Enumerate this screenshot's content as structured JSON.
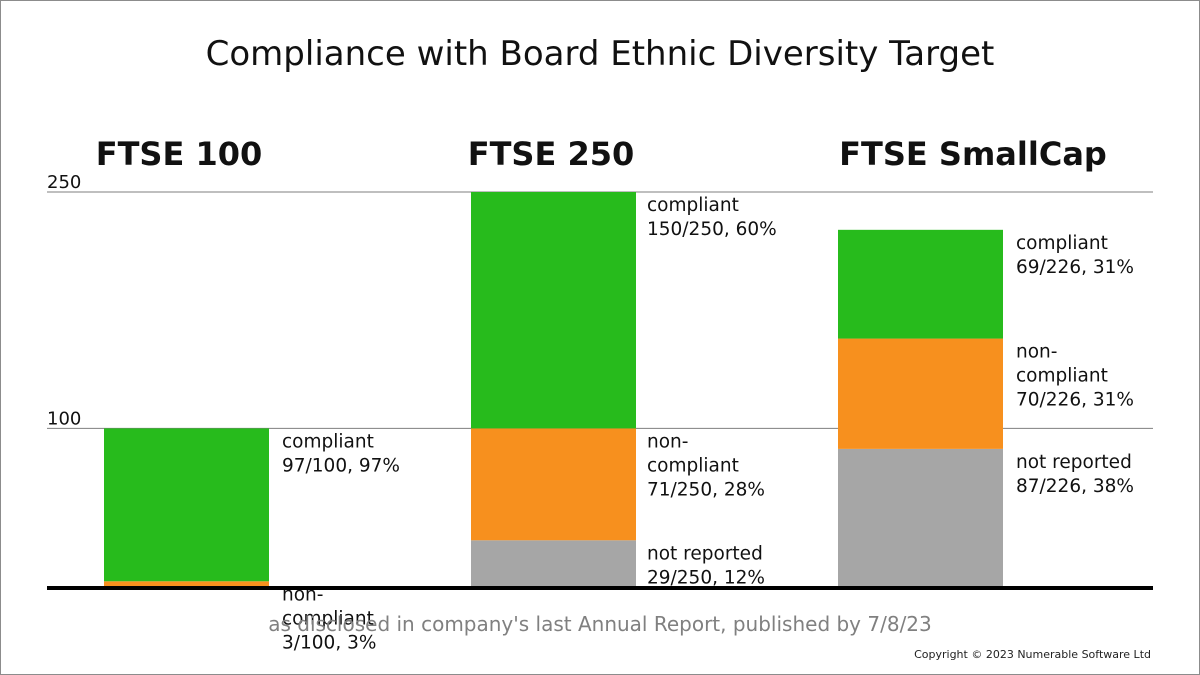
{
  "chart_data": {
    "type": "bar",
    "title": "Compliance with Board Ethnic Diversity Target",
    "footnote": "as disclosed in company's last Annual Report, published by 7/8/23",
    "copyright": "Copyright © 2023 Numerable Software Ltd",
    "y_ticks": [
      {
        "value": 250,
        "label": "250"
      },
      {
        "value": 100,
        "label": "100"
      }
    ],
    "ylim": [
      0,
      250
    ],
    "groups": [
      {
        "name": "FTSE 100",
        "segments": [
          {
            "key": "non-compliant",
            "value": 3,
            "color": "#f7901e",
            "label": [
              "non-",
              "compliant",
              "3/100, 3%"
            ]
          },
          {
            "key": "compliant",
            "value": 97,
            "color": "#27bb1c",
            "label": [
              "compliant",
              "97/100, 97%"
            ]
          }
        ]
      },
      {
        "name": "FTSE 250",
        "segments": [
          {
            "key": "not-reported",
            "value": 29,
            "color": "#a6a6a6",
            "label": [
              "not reported",
              "29/250, 12%"
            ]
          },
          {
            "key": "non-compliant",
            "value": 71,
            "color": "#f7901e",
            "label": [
              "non-",
              "compliant",
              "71/250, 28%"
            ]
          },
          {
            "key": "compliant",
            "value": 150,
            "color": "#27bb1c",
            "label": [
              "compliant",
              "150/250, 60%"
            ]
          }
        ]
      },
      {
        "name": "FTSE SmallCap",
        "segments": [
          {
            "key": "not-reported",
            "value": 87,
            "color": "#a6a6a6",
            "label": [
              "not reported",
              "87/226, 38%"
            ]
          },
          {
            "key": "non-compliant",
            "value": 70,
            "color": "#f7901e",
            "label": [
              "non-",
              "compliant",
              "70/226, 31%"
            ]
          },
          {
            "key": "compliant",
            "value": 69,
            "color": "#27bb1c",
            "label": [
              "compliant",
              "69/226, 31%"
            ]
          }
        ]
      }
    ]
  }
}
